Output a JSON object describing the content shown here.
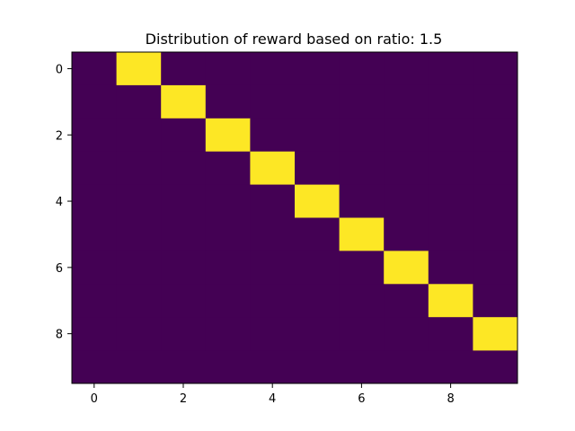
{
  "chart_data": {
    "type": "heatmap",
    "title": "Distribution of reward based on ratio: 1.5",
    "xlabel": "",
    "ylabel": "",
    "rows": 9,
    "cols": 10,
    "xlim": [
      -0.5,
      9.5
    ],
    "ylim": [
      9.5,
      -0.5
    ],
    "y_inverted": true,
    "grid": false,
    "legend": "none",
    "x_ticks": [
      0,
      2,
      4,
      6,
      8
    ],
    "x_tick_labels": [
      "0",
      "2",
      "4",
      "6",
      "8"
    ],
    "y_ticks": [
      0,
      2,
      4,
      6,
      8
    ],
    "y_tick_labels": [
      "0",
      "2",
      "4",
      "6",
      "8"
    ],
    "low_color": "#440154",
    "high_color": "#fde725",
    "values": [
      [
        0,
        1,
        0,
        0,
        0,
        0,
        0,
        0,
        0,
        0
      ],
      [
        0,
        0,
        1,
        0,
        0,
        0,
        0,
        0,
        0,
        0
      ],
      [
        0,
        0,
        0,
        1,
        0,
        0,
        0,
        0,
        0,
        0
      ],
      [
        0,
        0,
        0,
        0,
        1,
        0,
        0,
        0,
        0,
        0
      ],
      [
        0,
        0,
        0,
        0,
        0,
        1,
        0,
        0,
        0,
        0
      ],
      [
        0,
        0,
        0,
        0,
        0,
        0,
        1,
        0,
        0,
        0
      ],
      [
        0,
        0,
        0,
        0,
        0,
        0,
        0,
        1,
        0,
        0
      ],
      [
        0,
        0,
        0,
        0,
        0,
        0,
        0,
        0,
        1,
        0
      ],
      [
        0,
        0,
        0,
        0,
        0,
        0,
        0,
        0,
        0,
        1
      ]
    ]
  }
}
